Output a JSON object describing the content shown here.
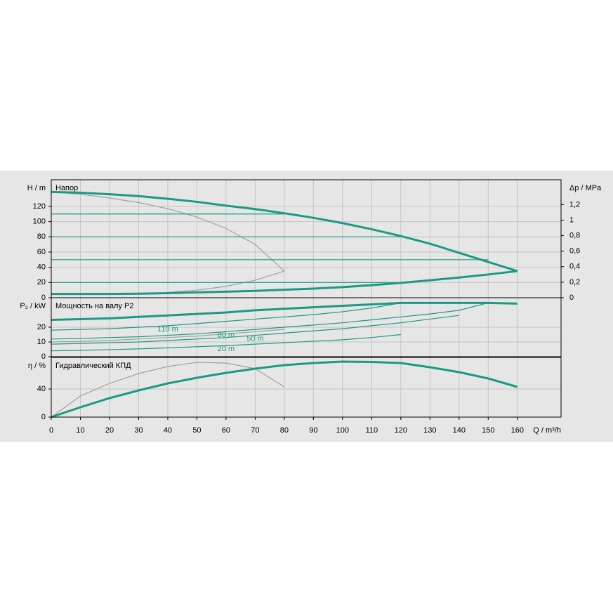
{
  "chart_data": [
    {
      "type": "line",
      "ylabel": "H / m",
      "y2label": "Δp / MPa",
      "title": "Напор",
      "xlim": [
        0,
        175
      ],
      "ylim": [
        0,
        155
      ],
      "yticks": [
        0,
        20,
        40,
        60,
        80,
        100,
        120
      ],
      "y2lim": [
        0,
        1.52
      ],
      "y2ticks": [
        0,
        {
          "value": 0.2,
          "label": "0,2"
        },
        {
          "value": 0.4,
          "label": "0,4"
        },
        {
          "value": 0.6,
          "label": "0,6"
        },
        {
          "value": 0.8,
          "label": "0,8"
        },
        1,
        {
          "value": 1.2,
          "label": "1,2"
        }
      ],
      "grid": true,
      "x": [
        0,
        10,
        20,
        30,
        40,
        50,
        60,
        70,
        80,
        90,
        100,
        110,
        120,
        130,
        140,
        150,
        160
      ],
      "series": [
        {
          "color": "#a0a0a0",
          "values": [
            139,
            136,
            131,
            125,
            117,
            106,
            91,
            70,
            35,
            null,
            null,
            null,
            null,
            null,
            null,
            null,
            null
          ]
        },
        {
          "color": "#a0a0a0",
          "values": [
            null,
            null,
            null,
            5,
            7,
            10,
            15,
            23,
            35,
            null,
            null,
            null,
            null,
            null,
            null,
            null,
            null
          ]
        },
        {
          "color": "#1a9a86",
          "values": [
            110,
            110,
            110,
            110,
            110,
            110,
            110,
            110,
            110,
            null,
            null,
            null,
            null,
            null,
            null,
            null,
            null
          ]
        },
        {
          "color": "#1a9a86",
          "values": [
            80,
            80,
            80,
            80,
            80,
            80,
            80,
            80,
            80,
            80,
            80,
            80,
            80,
            null,
            null,
            null,
            null
          ]
        },
        {
          "color": "#1a9a86",
          "values": [
            50,
            50,
            50,
            50,
            50,
            50,
            50,
            50,
            50,
            50,
            50,
            50,
            50,
            50,
            50,
            50,
            null
          ]
        },
        {
          "color": "#1a9a86",
          "values": [
            20,
            20,
            20,
            20,
            20,
            20,
            20,
            20,
            20,
            20,
            20,
            20,
            20,
            null,
            null,
            null,
            null
          ]
        },
        {
          "color": "#1a9a86",
          "bold": true,
          "values": [
            139,
            138,
            136,
            133.5,
            130,
            126,
            121,
            116.5,
            111,
            105,
            98,
            90,
            81,
            71,
            59,
            47,
            35
          ]
        },
        {
          "color": "#1a9a86",
          "bold": true,
          "values": [
            5,
            5,
            5,
            5.3,
            6,
            7,
            8,
            9,
            10.5,
            12,
            14,
            16.5,
            19.5,
            23,
            26.5,
            30.5,
            35
          ]
        }
      ]
    },
    {
      "type": "line",
      "ylabel": "P₂ / kW",
      "title": "Мощность на валу P2",
      "xlim": [
        0,
        175
      ],
      "ylim": [
        0,
        40
      ],
      "yticks": [
        0,
        10,
        20
      ],
      "grid": true,
      "x": [
        0,
        10,
        20,
        30,
        40,
        50,
        60,
        70,
        80,
        90,
        100,
        110,
        120,
        130,
        140,
        150,
        160
      ],
      "series": [
        {
          "color": "#a0a0a0",
          "values": [
            10,
            10.5,
            11,
            12,
            13,
            14,
            15.5,
            17,
            18.5,
            null,
            null,
            null,
            null,
            null,
            null,
            null,
            null
          ]
        },
        {
          "name": "110 m",
          "color": "#1a9a86",
          "values": [
            18,
            18.5,
            19,
            20,
            21,
            22.5,
            24,
            25.5,
            27,
            28.5,
            30.5,
            33,
            36.5,
            null,
            null,
            null,
            null
          ]
        },
        {
          "name": "80 m",
          "color": "#1a9a86",
          "values": [
            12,
            12.3,
            13,
            13.5,
            14.5,
            15.5,
            17,
            18.5,
            20,
            21.5,
            23,
            25,
            27,
            29,
            31.5,
            36.5,
            null
          ]
        },
        {
          "name": "50 m",
          "color": "#1a9a86",
          "values": [
            8.5,
            9,
            9.5,
            10,
            11,
            12,
            13,
            14.5,
            16,
            17.5,
            19,
            21,
            23,
            25.5,
            28,
            null,
            null
          ]
        },
        {
          "name": "20 m",
          "color": "#1a9a86",
          "values": [
            4,
            4.3,
            4.8,
            5.3,
            6,
            6.8,
            7.5,
            8.5,
            9.5,
            10.5,
            11.5,
            13,
            15,
            null,
            null,
            null,
            null
          ]
        },
        {
          "color": "#1a9a86",
          "bold": true,
          "values": [
            25,
            25.5,
            26,
            27,
            28,
            29,
            30,
            31.5,
            32.5,
            33.5,
            34.5,
            35.5,
            36.5,
            36.5,
            36.5,
            36.5,
            36
          ]
        }
      ]
    },
    {
      "type": "line",
      "ylabel": "η / %",
      "title": "Гидравлический КПД",
      "xlabel": "Q / m³/h",
      "xlim": [
        0,
        175
      ],
      "xticks": [
        0,
        10,
        20,
        30,
        40,
        50,
        60,
        70,
        80,
        90,
        100,
        110,
        120,
        130,
        140,
        150,
        160
      ],
      "ylim": [
        0,
        85
      ],
      "yticks": [
        0,
        40
      ],
      "grid": true,
      "x": [
        0,
        10,
        20,
        30,
        40,
        50,
        60,
        70,
        80,
        90,
        100,
        110,
        120,
        130,
        140,
        150,
        160
      ],
      "series": [
        {
          "color": "#a0a0a0",
          "values": [
            0,
            30,
            48,
            62,
            72,
            78,
            77,
            69,
            43,
            null,
            null,
            null,
            null,
            null,
            null,
            null,
            null
          ]
        },
        {
          "color": "#1a9a86",
          "bold": true,
          "values": [
            0,
            14,
            27,
            38,
            48,
            56,
            63,
            69,
            74,
            77,
            79,
            78.5,
            77,
            71,
            64,
            55,
            43
          ]
        }
      ]
    }
  ]
}
